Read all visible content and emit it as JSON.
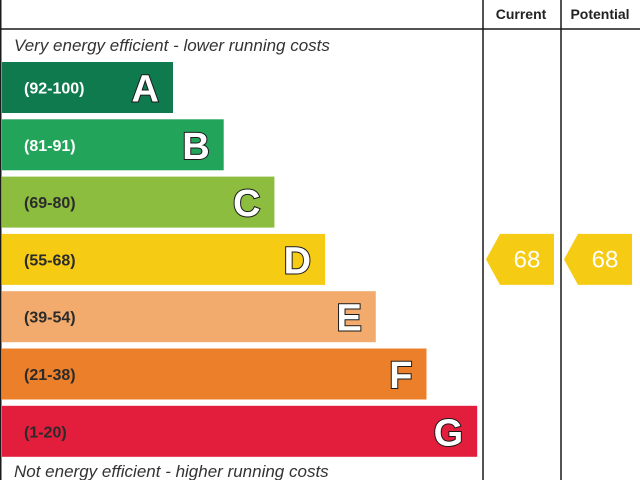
{
  "chart_data": {
    "type": "bar",
    "columns": {
      "current": "Current",
      "potential": "Potential"
    },
    "top_caption": "Very energy efficient - lower running costs",
    "bottom_caption": "Not energy efficient - higher running costs",
    "bands": [
      {
        "letter": "A",
        "range": "(92-100)",
        "min": 92,
        "max": 100,
        "color": "#0f7a4e",
        "range_color": "#ffffff"
      },
      {
        "letter": "B",
        "range": "(81-91)",
        "min": 81,
        "max": 91,
        "color": "#22a45a",
        "range_color": "#ffffff"
      },
      {
        "letter": "C",
        "range": "(69-80)",
        "min": 69,
        "max": 80,
        "color": "#8cbd3f",
        "range_color": "#2b2b2b"
      },
      {
        "letter": "D",
        "range": "(55-68)",
        "min": 55,
        "max": 68,
        "color": "#f5cb14",
        "range_color": "#2b2b2b"
      },
      {
        "letter": "E",
        "range": "(39-54)",
        "min": 39,
        "max": 54,
        "color": "#f2ab6c",
        "range_color": "#2b2b2b"
      },
      {
        "letter": "F",
        "range": "(21-38)",
        "min": 21,
        "max": 38,
        "color": "#ec7f2a",
        "range_color": "#2b2b2b"
      },
      {
        "letter": "G",
        "range": "(1-20)",
        "min": 1,
        "max": 20,
        "color": "#e31d3c",
        "range_color": "#2b2b2b"
      }
    ],
    "current": {
      "value": 68,
      "band": "D",
      "color": "#f5cb14"
    },
    "potential": {
      "value": 68,
      "band": "D",
      "color": "#f5cb14"
    }
  }
}
